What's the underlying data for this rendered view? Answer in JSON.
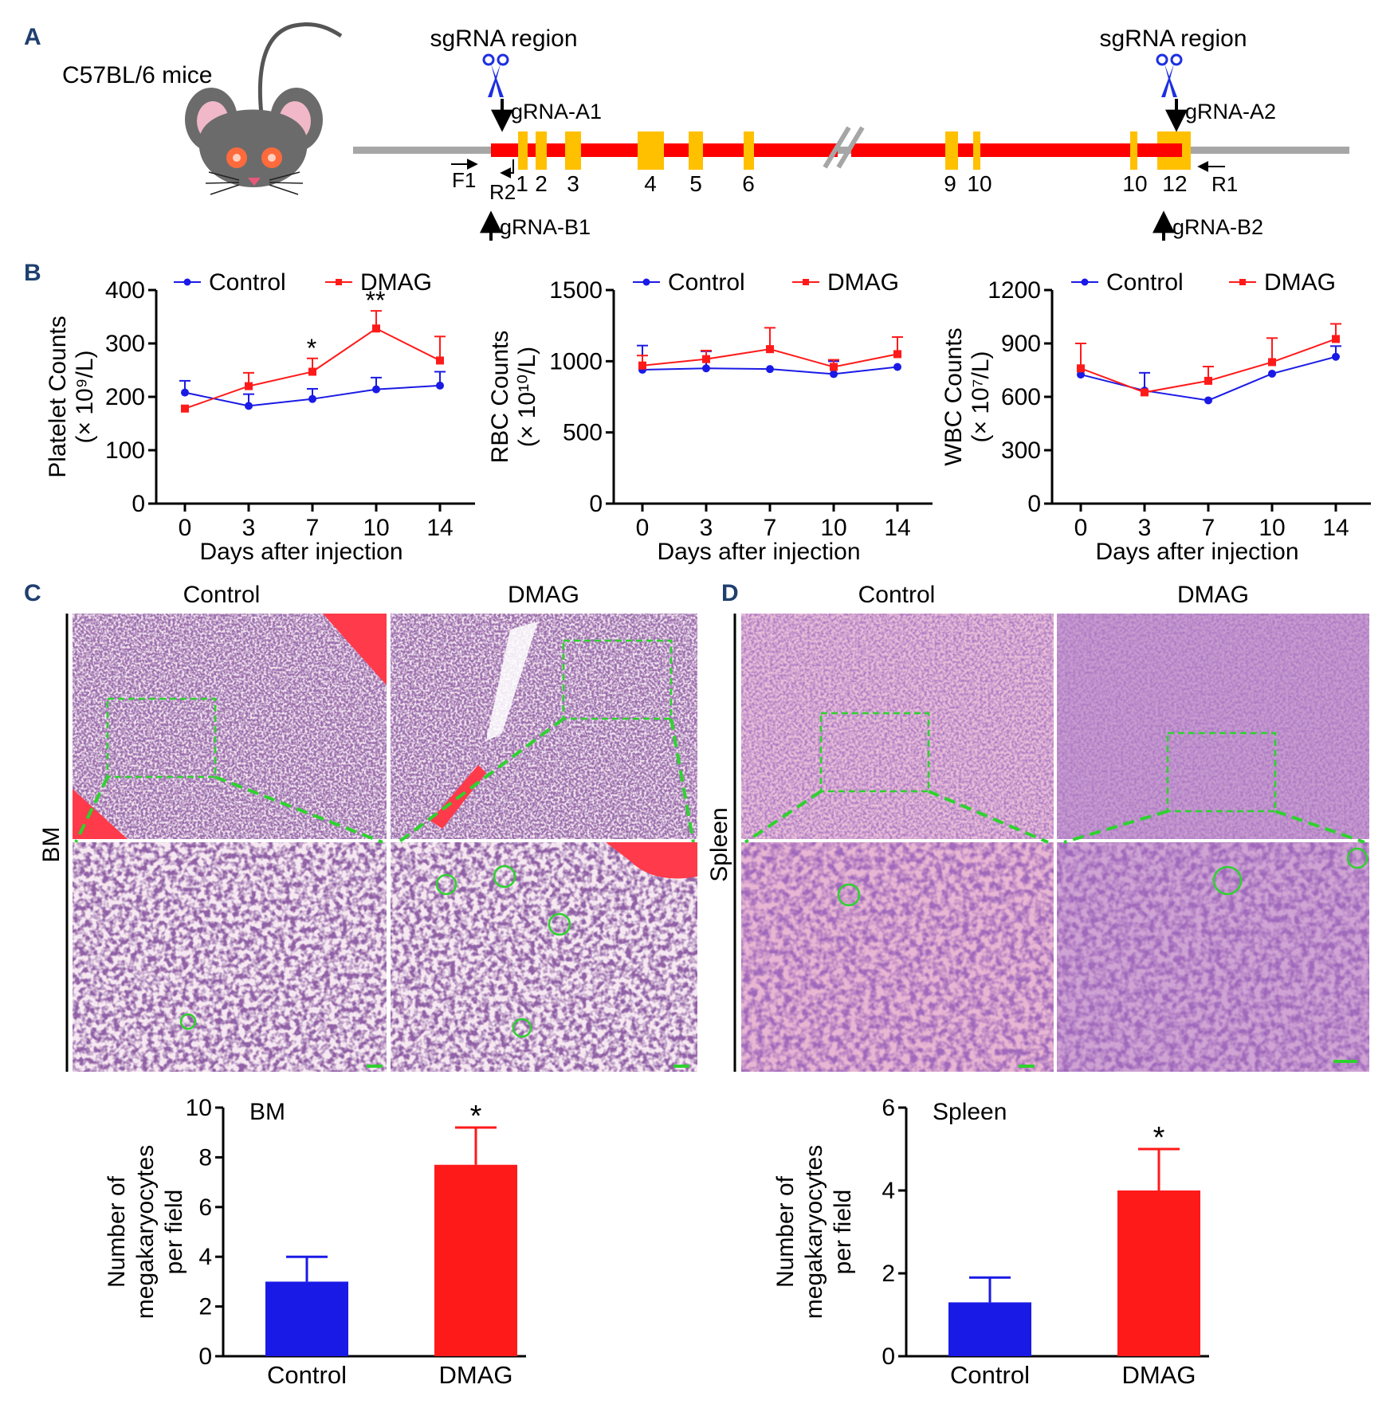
{
  "panel_labels": [
    "A",
    "B",
    "C",
    "D"
  ],
  "panel_a": {
    "mouse_label": "C57BL/6 mice",
    "sgrna_region_left": "sgRNA region",
    "sgrna_region_right": "sgRNA region",
    "grna_a1": "gRNA-A1",
    "grna_a2": "gRNA-A2",
    "grna_b1": "gRNA-B1",
    "grna_b2": "gRNA-B2",
    "primer_f1": "F1",
    "primer_r1": "R1",
    "primer_r2": "R2",
    "exons": [
      "1",
      "2",
      "3",
      "4",
      "5",
      "6",
      "9",
      "10",
      "10",
      "12"
    ],
    "colors": {
      "gene": "#ff0000",
      "exon": "#ffc000",
      "backbone": "#a6a6a6",
      "scissors": "#1d2fe0"
    }
  },
  "panel_b": {
    "legend": {
      "control": "Control",
      "dmag": "DMAG"
    },
    "xlabel": "Days after injection",
    "plots": [
      {
        "ylabel_main": "Platelet  Counts",
        "ylabel_unit": "(× 10⁹/L)",
        "ticks": [
          "0",
          "100",
          "200",
          "300",
          "400"
        ],
        "annotations": [
          "*",
          "**"
        ]
      },
      {
        "ylabel_main": "RBC Counts",
        "ylabel_unit": "(× 10¹⁰/L)",
        "ticks": [
          "0",
          "500",
          "1000",
          "1500"
        ],
        "annotations": []
      },
      {
        "ylabel_main": "WBC Counts",
        "ylabel_unit": "(× 10⁷/L)",
        "ticks": [
          "0",
          "300",
          "600",
          "900",
          "1200"
        ],
        "annotations": []
      }
    ],
    "colors": {
      "control": "#1a1ae6",
      "dmag": "#ff1a1a"
    }
  },
  "panel_c": {
    "title_control": "Control",
    "title_dmag": "DMAG",
    "side_label": "BM"
  },
  "panel_d": {
    "title_control": "Control",
    "title_dmag": "DMAG",
    "side_label": "Spleen"
  },
  "bar_charts": [
    {
      "ylabel_line1": "Number of",
      "ylabel_line2": "megakaryocytes",
      "ylabel_line3": "per field",
      "ticks": [
        "0",
        "2",
        "4",
        "6",
        "8",
        "10"
      ],
      "significance": "*"
    },
    {
      "ylabel_line1": "Number of",
      "ylabel_line2": "megakaryocytes",
      "ylabel_line3": "per field",
      "ticks": [
        "0",
        "2",
        "4",
        "6"
      ],
      "significance": "*"
    }
  ],
  "chart_data": [
    {
      "type": "line",
      "title": "",
      "xlabel": "Days after injection",
      "ylabel": "Platelet  Counts (× 10⁹/L)",
      "x": [
        0,
        3,
        7,
        10,
        14
      ],
      "ylim": [
        0,
        400
      ],
      "series": [
        {
          "name": "Control",
          "values": [
            208,
            183,
            196,
            214,
            221
          ],
          "errors": [
            22,
            22,
            19,
            22,
            26
          ]
        },
        {
          "name": "DMAG",
          "values": [
            178,
            220,
            247,
            328,
            268
          ],
          "errors": [
            0,
            25,
            25,
            33,
            45
          ]
        }
      ]
    },
    {
      "type": "line",
      "title": "",
      "xlabel": "Days after injection",
      "ylabel": "RBC Counts (× 10¹⁰/L)",
      "x": [
        0,
        3,
        7,
        10,
        14
      ],
      "ylim": [
        0,
        1500
      ],
      "series": [
        {
          "name": "Control",
          "values": [
            940,
            950,
            945,
            910,
            960
          ],
          "errors": [
            170,
            120,
            0,
            90,
            0
          ]
        },
        {
          "name": "DMAG",
          "values": [
            970,
            1015,
            1085,
            960,
            1050
          ],
          "errors": [
            70,
            60,
            150,
            50,
            120
          ]
        }
      ]
    },
    {
      "type": "line",
      "title": "",
      "xlabel": "Days after injection",
      "ylabel": "WBC Counts (× 10⁷/L)",
      "x": [
        0,
        3,
        7,
        10,
        14
      ],
      "ylim": [
        0,
        1200
      ],
      "series": [
        {
          "name": "Control",
          "values": [
            725,
            635,
            580,
            730,
            825
          ],
          "errors": [
            0,
            100,
            0,
            0,
            60
          ]
        },
        {
          "name": "DMAG",
          "values": [
            760,
            625,
            690,
            795,
            925
          ],
          "errors": [
            140,
            0,
            80,
            135,
            85
          ]
        }
      ]
    },
    {
      "type": "bar",
      "title": "BM",
      "xlabel": "",
      "ylabel": "Number of megakaryocytes per field",
      "categories": [
        "Control",
        "DMAG"
      ],
      "values": [
        3,
        7.7
      ],
      "errors": [
        1,
        1.5
      ],
      "ylim": [
        0,
        10
      ]
    },
    {
      "type": "bar",
      "title": "Spleen",
      "xlabel": "",
      "ylabel": "Number of megakaryocytes per field",
      "categories": [
        "Control",
        "DMAG"
      ],
      "values": [
        1.3,
        4
      ],
      "errors": [
        0.6,
        1
      ],
      "ylim": [
        0,
        6
      ]
    }
  ]
}
